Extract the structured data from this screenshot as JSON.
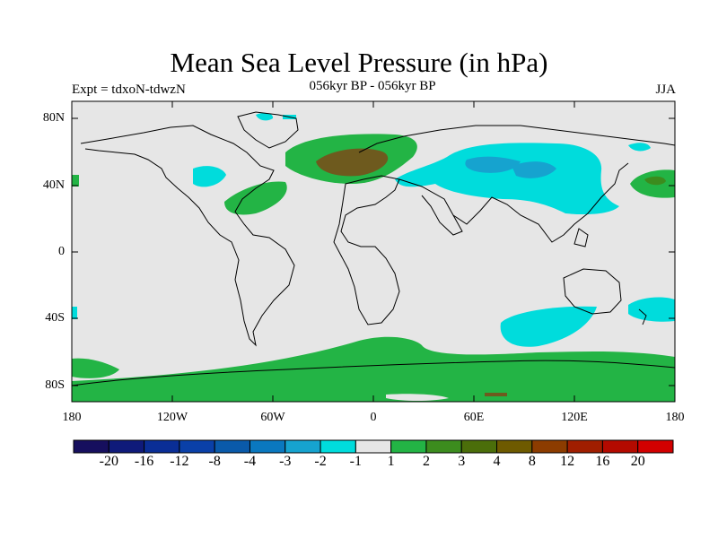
{
  "title": "Mean Sea Level Pressure (in hPa)",
  "experiment": "Expt = tdxoN-tdwzN",
  "period": "056kyr BP - 056kyr BP",
  "season": "JJA",
  "lat_labels": [
    "80N",
    "40N",
    "0",
    "40S",
    "80S"
  ],
  "lon_labels": [
    "180",
    "120W",
    "60W",
    "0",
    "60E",
    "120E",
    "180"
  ],
  "colorbar": {
    "colors": [
      "#160f5e",
      "#0f1a7a",
      "#0a2e96",
      "#0a40a8",
      "#0a5aaa",
      "#0a78bf",
      "#16a3cf",
      "#00dcdc",
      "#e6e6e6",
      "#23b445",
      "#3c8c1e",
      "#4b6e0a",
      "#6e5a00",
      "#8c3c00",
      "#a01e00",
      "#b40a00",
      "#d20000"
    ],
    "labels": [
      "-20",
      "-16",
      "-12",
      "-8",
      "-4",
      "-3",
      "-2",
      "-1",
      "1",
      "2",
      "3",
      "4",
      "8",
      "12",
      "16",
      "20"
    ]
  },
  "palette": {
    "neutral": "#e6e6e6",
    "pos1": "#23b445",
    "pos2": "#3c8c1e",
    "pos3": "#6e5a1e",
    "neg1": "#00dcdc",
    "neg2": "#16a3cf",
    "coast": "#000000"
  }
}
